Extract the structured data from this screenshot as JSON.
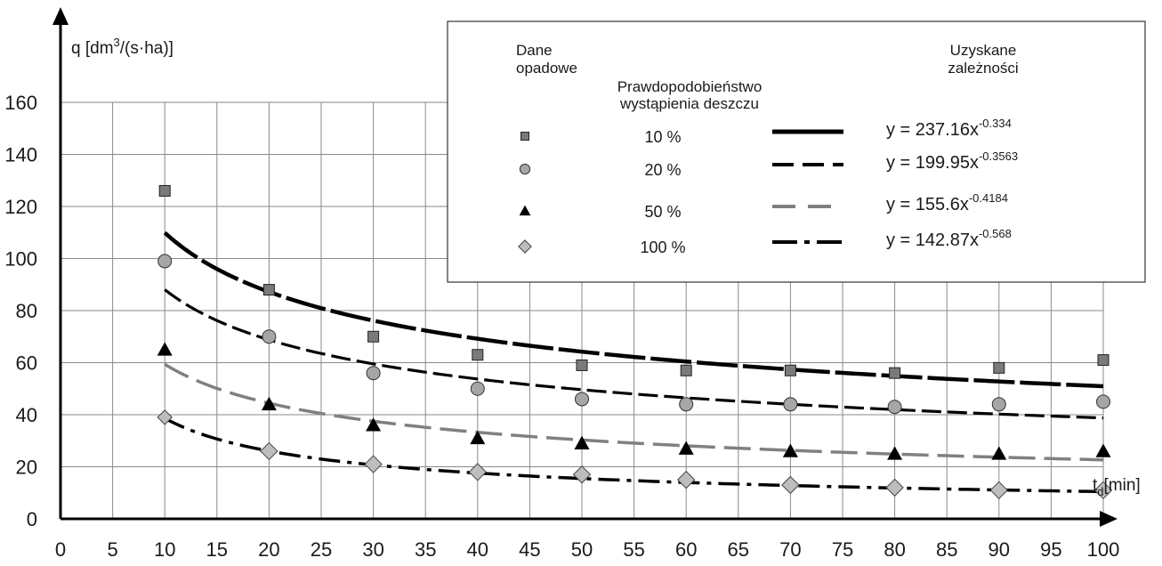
{
  "chart_data": {
    "type": "scatter",
    "x_ticks": [
      "0",
      "5",
      "10",
      "15",
      "20",
      "25",
      "30",
      "35",
      "40",
      "45",
      "50",
      "55",
      "60",
      "65",
      "70",
      "75",
      "80",
      "85",
      "90",
      "95",
      "100"
    ],
    "y_ticks": [
      "0",
      "20",
      "40",
      "60",
      "80",
      "100",
      "120",
      "140",
      "160"
    ],
    "xlim": [
      0,
      100
    ],
    "ylim": [
      0,
      160
    ],
    "grid": true,
    "ylabel": {
      "main": "q [dm",
      "sup": "3",
      "rest": "/(s·ha)]"
    },
    "xlabel": {
      "main": "t",
      "sub": "d",
      "rest": "[min]"
    },
    "legend": {
      "placement": "top-right",
      "heading_data_line1": "Dane",
      "heading_data_line2": "opadowe",
      "heading_prob_line1": "Prawdopodobieństwo",
      "heading_prob_line2": "wystąpienia deszczu",
      "heading_fit_line1": "Uzyskane",
      "heading_fit_line2": "zależności"
    },
    "series": [
      {
        "name": "10 %",
        "marker": "square",
        "marker_color": "#7a7a7a",
        "line_color": "#000000",
        "line_style": "solid-long-dash",
        "equation": {
          "base": "y = 237.16x",
          "exp": "-0.334"
        },
        "fit": {
          "a": 237.16,
          "b": -0.334
        },
        "x": [
          10,
          20,
          30,
          40,
          50,
          60,
          70,
          80,
          90,
          100
        ],
        "y": [
          126,
          88,
          70,
          63,
          59,
          57,
          57,
          56,
          58,
          61
        ]
      },
      {
        "name": "20 %",
        "marker": "circle",
        "marker_color": "#a6a6a6",
        "line_color": "#000000",
        "line_style": "dashed",
        "equation": {
          "base": "y = 199.95x",
          "exp": "-0.3563"
        },
        "fit": {
          "a": 199.95,
          "b": -0.3563
        },
        "x": [
          10,
          20,
          30,
          40,
          50,
          60,
          70,
          80,
          90,
          100
        ],
        "y": [
          99,
          70,
          56,
          50,
          46,
          44,
          44,
          43,
          44,
          45
        ]
      },
      {
        "name": "50 %",
        "marker": "triangle",
        "marker_color": "#000000",
        "line_color": "#808080",
        "line_style": "dashed-gray",
        "equation": {
          "base": "y = 155.6x",
          "exp": "-0.4184"
        },
        "fit": {
          "a": 155.6,
          "b": -0.4184
        },
        "x": [
          10,
          20,
          30,
          40,
          50,
          60,
          70,
          80,
          90,
          100
        ],
        "y": [
          65,
          44,
          36,
          31,
          29,
          27,
          26,
          25,
          25,
          26
        ]
      },
      {
        "name": "100 %",
        "marker": "diamond",
        "marker_color": "#bdbdbd",
        "line_color": "#000000",
        "line_style": "dash-dot",
        "equation": {
          "base": "y = 142.87x",
          "exp": "-0.568"
        },
        "fit": {
          "a": 142.87,
          "b": -0.568
        },
        "x": [
          10,
          20,
          30,
          40,
          50,
          60,
          70,
          80,
          90,
          100
        ],
        "y": [
          39,
          26,
          21,
          18,
          17,
          15,
          13,
          12,
          11,
          11
        ]
      }
    ]
  }
}
